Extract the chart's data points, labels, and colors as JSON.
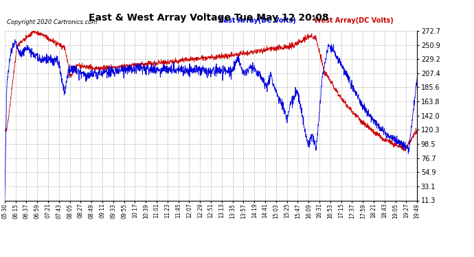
{
  "title": "East & West Array Voltage Tue May 12 20:08",
  "copyright": "Copyright 2020 Cartronics.com",
  "legend_east": "East Array(DC Volts)",
  "legend_west": "West Array(DC Volts)",
  "yticks": [
    11.3,
    33.1,
    54.9,
    76.7,
    98.5,
    120.3,
    142.0,
    163.8,
    185.6,
    207.4,
    229.2,
    250.9,
    272.7
  ],
  "xtick_labels": [
    "05:30",
    "06:15",
    "06:37",
    "06:59",
    "07:21",
    "07:43",
    "08:05",
    "08:27",
    "08:49",
    "09:11",
    "09:33",
    "09:55",
    "10:17",
    "10:39",
    "11:01",
    "11:23",
    "11:45",
    "12:07",
    "12:29",
    "12:51",
    "13:13",
    "13:35",
    "13:57",
    "14:19",
    "14:41",
    "15:03",
    "15:25",
    "15:47",
    "16:09",
    "16:31",
    "16:53",
    "17:15",
    "17:37",
    "17:59",
    "18:21",
    "18:43",
    "19:05",
    "19:27",
    "19:49"
  ],
  "ymin": 11.3,
  "ymax": 272.7,
  "bg_color": "#ffffff",
  "grid_color": "#aaaaaa",
  "east_color": "#0000dd",
  "west_color": "#cc0000",
  "title_color": "#000000",
  "copyright_color": "#000000",
  "legend_east_color": "#0000dd",
  "legend_west_color": "#cc0000",
  "figwidth": 6.9,
  "figheight": 3.75,
  "dpi": 100
}
